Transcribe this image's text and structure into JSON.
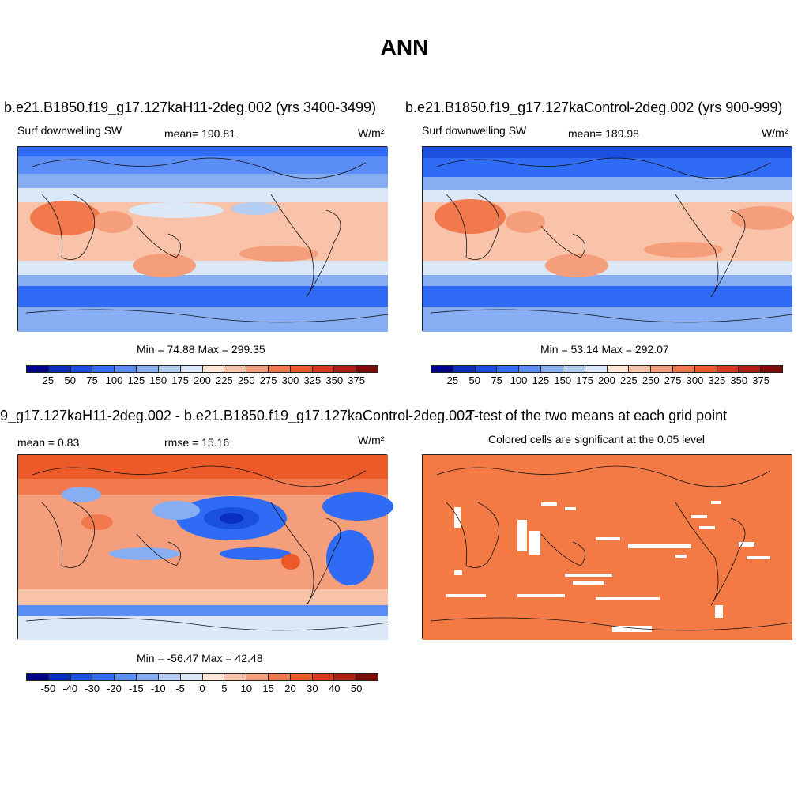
{
  "title": "ANN",
  "panels": [
    {
      "title": "b.e21.B1850.f19_g17.127kaH11-2deg.002 (yrs 3400-3499)",
      "left_label": "Surf downwelling SW",
      "center_label": "mean= 190.81",
      "units": "W/m²",
      "minmax": "Min =  74.88 Max = 299.35",
      "colorbar_ticks": [
        "25",
        "50",
        "75",
        "100",
        "125",
        "150",
        "175",
        "200",
        "225",
        "250",
        "275",
        "300",
        "325",
        "350",
        "375"
      ]
    },
    {
      "title": "b.e21.B1850.f19_g17.127kaControl-2deg.002 (yrs 900-999)",
      "left_label": "Surf downwelling SW",
      "center_label": "mean= 189.98",
      "units": "W/m²",
      "minmax": "Min =  53.14 Max = 292.07",
      "colorbar_ticks": [
        "25",
        "50",
        "75",
        "100",
        "125",
        "150",
        "175",
        "200",
        "225",
        "250",
        "275",
        "300",
        "325",
        "350",
        "375"
      ]
    },
    {
      "title": "9_g17.127kaH11-2deg.002 - b.e21.B1850.f19_g17.127kaControl-2deg.002",
      "left_label": "mean =   0.83",
      "center_label": "rmse =  15.16",
      "units": "W/m²",
      "minmax": "Min = -56.47 Max =  42.48",
      "colorbar_ticks": [
        "-50",
        "-40",
        "-30",
        "-20",
        "-15",
        "-10",
        "-5",
        "0",
        "5",
        "10",
        "15",
        "20",
        "30",
        "40",
        "50"
      ]
    },
    {
      "title": "T-test of the two means at each grid point",
      "subtitle": "Colored cells are significant at the 0.05 level"
    }
  ],
  "colors": {
    "abs_scale": [
      "#00008b",
      "#0a2fbf",
      "#1a4fe0",
      "#2f6bf5",
      "#5a8df5",
      "#87aef2",
      "#b4cdf2",
      "#dbe8f8",
      "#fde6d8",
      "#f8c3a9",
      "#f59e7b",
      "#f2784d",
      "#ec5a2a",
      "#d9381c",
      "#b01f12",
      "#840b0b"
    ],
    "diff_scale": [
      "#00008b",
      "#0a2fbf",
      "#1a4fe0",
      "#2f6bf5",
      "#5a8df5",
      "#87aef2",
      "#b4cdf2",
      "#dbe8f8",
      "#fde6d8",
      "#f8c3a9",
      "#f59e7b",
      "#f2784d",
      "#ec5a2a",
      "#d9381c",
      "#b01f12",
      "#840b0b"
    ],
    "ttest_fill": "#f37a44"
  }
}
